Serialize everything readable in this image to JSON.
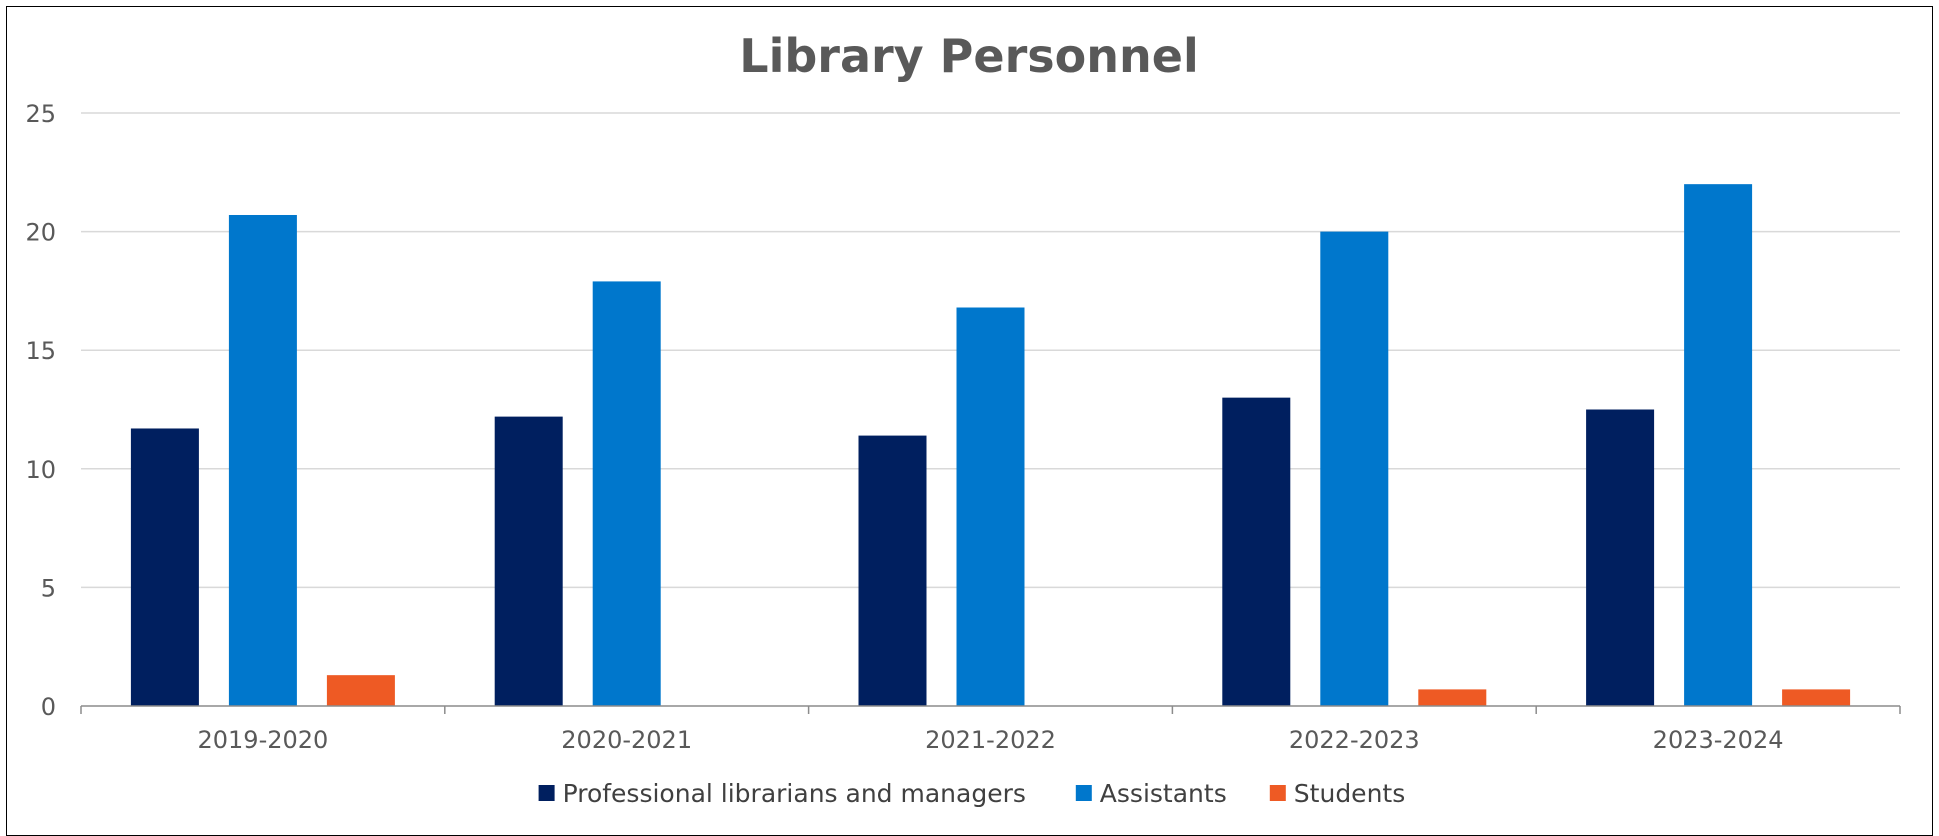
{
  "chart_data": {
    "type": "bar",
    "title": "Library Personnel",
    "xlabel": "",
    "ylabel": "",
    "categories": [
      "2019-2020",
      "2020-2021",
      "2021-2022",
      "2022-2023",
      "2023-2024"
    ],
    "series": [
      {
        "name": "Professional librarians and managers",
        "color": "#001f5f",
        "values": [
          11.7,
          12.2,
          11.4,
          13.0,
          12.5
        ]
      },
      {
        "name": "Assistants",
        "color": "#0077cc",
        "values": [
          20.7,
          17.9,
          16.8,
          20.0,
          22.0
        ]
      },
      {
        "name": "Students",
        "color": "#ee5a24",
        "values": [
          1.3,
          0,
          0,
          0.7,
          0.7
        ]
      }
    ],
    "ylim": [
      0,
      25
    ],
    "yticks": [
      "0",
      "5",
      "10",
      "15",
      "20",
      "25"
    ],
    "grid": true,
    "legend_position": "bottom"
  }
}
